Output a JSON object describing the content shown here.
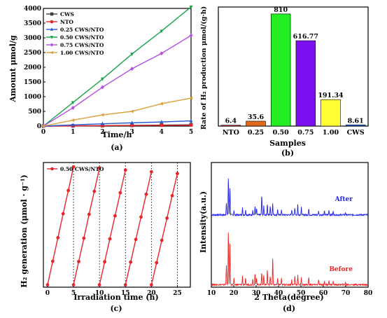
{
  "panels": {
    "a": {
      "label": "(a)",
      "chart_data": {
        "type": "line",
        "xlabel": "Time/h",
        "ylabel": "Amount μmol/g",
        "xlim": [
          0,
          5
        ],
        "ylim": [
          0,
          4000
        ],
        "xticks": [
          0,
          1,
          2,
          3,
          4,
          5
        ],
        "yticks": [
          0,
          500,
          1000,
          1500,
          2000,
          2500,
          3000,
          3500,
          4000
        ],
        "legend_position": "top-left",
        "x": [
          0,
          1,
          2,
          3,
          4,
          5
        ],
        "series": [
          {
            "name": "CWS",
            "color": "#404040",
            "marker": "square",
            "values": [
              0,
              9,
              17,
              26,
              34,
              43
            ]
          },
          {
            "name": "NTO",
            "color": "#e8262a",
            "marker": "circle",
            "values": [
              0,
              6,
              13,
              19,
              26,
              32
            ]
          },
          {
            "name": "0.25 CWS/NTO",
            "color": "#2b5dd1",
            "marker": "triangle-up",
            "values": [
              0,
              40,
              80,
              110,
              140,
              178
            ]
          },
          {
            "name": "0.50 CWS/NTO",
            "color": "#1aa34a",
            "marker": "triangle-down",
            "values": [
              0,
              800,
              1600,
              2450,
              3230,
              4050
            ]
          },
          {
            "name": "0.75 CWS/NTO",
            "color": "#b44ee0",
            "marker": "diamond",
            "values": [
              0,
              620,
              1320,
              1950,
              2470,
              3080
            ]
          },
          {
            "name": "1.00 CWS/NTO",
            "color": "#d8a13a",
            "marker": "triangle-left",
            "values": [
              0,
              200,
              380,
              500,
              760,
              950
            ]
          }
        ]
      }
    },
    "b": {
      "label": "(b)",
      "chart_data": {
        "type": "bar",
        "xlabel": "Samples",
        "ylabel": "Rate of H₂ production μmol/(g·h)",
        "ylim": [
          0,
          860
        ],
        "categories": [
          "NTO",
          "0.25",
          "0.50",
          "0.75",
          "1.00",
          "CWS"
        ],
        "values": [
          6.4,
          35.6,
          810,
          616.77,
          191.34,
          8.61
        ],
        "value_labels": [
          "6.4",
          "35.6",
          "810",
          "616.77",
          "191.34",
          "8.61"
        ],
        "colors": [
          "#e8262a",
          "#e06a1a",
          "#22ee22",
          "#7b0ff0",
          "#ffff33",
          "#2266ee"
        ]
      }
    },
    "c": {
      "label": "(c)",
      "chart_data": {
        "type": "line",
        "xlabel": "Irradiation time (h)",
        "ylabel": "H₂ generation (μmol · g⁻¹)",
        "xlim": [
          -0.8,
          27.5
        ],
        "ylim": [
          -80,
          4200
        ],
        "xticks": [
          0,
          5,
          10,
          15,
          20,
          25
        ],
        "dashed_x": [
          5,
          10,
          15,
          20,
          25
        ],
        "legend_position": "top-left",
        "series": [
          {
            "name": "0.50 CWS/NTO",
            "color": "#e8262a",
            "marker": "circle",
            "cycles": [
              {
                "x": [
                  0,
                  1,
                  2,
                  3,
                  4,
                  5
                ],
                "values": [
                  0,
                  810,
                  1620,
                  2440,
                  3240,
                  4050
                ]
              },
              {
                "x": [
                  5,
                  6,
                  7,
                  8,
                  9,
                  10
                ],
                "values": [
                  0,
                  800,
                  1600,
                  2420,
                  3210,
                  4010
                ]
              },
              {
                "x": [
                  10,
                  11,
                  12,
                  13,
                  14,
                  15
                ],
                "values": [
                  0,
                  790,
                  1580,
                  2370,
                  3160,
                  3940
                ]
              },
              {
                "x": [
                  15,
                  16,
                  17,
                  18,
                  19,
                  20
                ],
                "values": [
                  0,
                  780,
                  1560,
                  2330,
                  3110,
                  3880
                ]
              },
              {
                "x": [
                  20,
                  21,
                  22,
                  23,
                  24,
                  25
                ],
                "values": [
                  0,
                  760,
                  1530,
                  2290,
                  3060,
                  3820
                ]
              }
            ]
          }
        ]
      }
    },
    "d": {
      "label": "(d)",
      "chart_data": {
        "type": "line",
        "xlabel": "2 Theta(degree)",
        "ylabel": "Intensity(a.u.)",
        "xlim": [
          10,
          80
        ],
        "xticks": [
          10,
          20,
          30,
          40,
          50,
          60,
          70,
          80
        ],
        "series": [
          {
            "name": "After",
            "color": "#2222ee",
            "baseline": 0.58,
            "peaks": [
              [
                16.7,
                0.1
              ],
              [
                17.6,
                0.31
              ],
              [
                18.3,
                0.22
              ],
              [
                20.1,
                0.04
              ],
              [
                23.9,
                0.06
              ],
              [
                25.3,
                0.04
              ],
              [
                28.5,
                0.04
              ],
              [
                29.5,
                0.07
              ],
              [
                30.2,
                0.05
              ],
              [
                32.5,
                0.16
              ],
              [
                33.4,
                0.07
              ],
              [
                35.0,
                0.09
              ],
              [
                36.3,
                0.07
              ],
              [
                37.4,
                0.1
              ],
              [
                39.6,
                0.05
              ],
              [
                41.3,
                0.04
              ],
              [
                45.9,
                0.04
              ],
              [
                47.3,
                0.06
              ],
              [
                48.6,
                0.09
              ],
              [
                50.2,
                0.06
              ],
              [
                53.5,
                0.05
              ],
              [
                57.9,
                0.03
              ],
              [
                60.5,
                0.03
              ],
              [
                62.5,
                0.04
              ],
              [
                64.4,
                0.03
              ],
              [
                69.9,
                0.02
              ]
            ]
          },
          {
            "name": "Before",
            "color": "#ee2222",
            "baseline": 0.02,
            "peaks": [
              [
                16.7,
                0.16
              ],
              [
                17.6,
                0.44
              ],
              [
                18.3,
                0.33
              ],
              [
                20.1,
                0.05
              ],
              [
                23.9,
                0.07
              ],
              [
                25.3,
                0.05
              ],
              [
                28.5,
                0.05
              ],
              [
                29.5,
                0.09
              ],
              [
                30.2,
                0.06
              ],
              [
                32.5,
                0.1
              ],
              [
                33.4,
                0.08
              ],
              [
                35.0,
                0.12
              ],
              [
                36.3,
                0.07
              ],
              [
                37.4,
                0.22
              ],
              [
                39.6,
                0.05
              ],
              [
                41.3,
                0.05
              ],
              [
                45.9,
                0.04
              ],
              [
                47.3,
                0.07
              ],
              [
                48.6,
                0.08
              ],
              [
                50.2,
                0.06
              ],
              [
                53.5,
                0.06
              ],
              [
                57.9,
                0.04
              ],
              [
                60.5,
                0.03
              ],
              [
                62.5,
                0.03
              ],
              [
                64.4,
                0.03
              ],
              [
                69.9,
                0.02
              ]
            ]
          }
        ],
        "series_labels": [
          "After",
          "Before"
        ]
      }
    }
  }
}
